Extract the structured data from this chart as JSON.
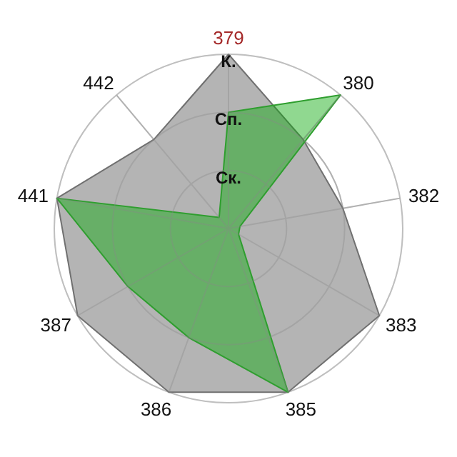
{
  "chart_data": {
    "type": "radar",
    "categories": [
      "379",
      "380",
      "382",
      "383",
      "385",
      "386",
      "387",
      "441",
      "442"
    ],
    "series": [
      {
        "color": "#b4b4b4",
        "values": [
          3,
          2,
          2,
          3,
          3,
          3,
          3,
          3,
          2
        ]
      },
      {
        "color": "#08a908",
        "values": [
          2,
          3,
          0.2,
          0.2,
          3,
          2,
          2,
          3,
          0.25
        ]
      }
    ],
    "ylim": [
      0,
      3
    ],
    "yticks": [
      {
        "value": 1,
        "label": "Ск."
      },
      {
        "value": 2,
        "label": "Сп."
      },
      {
        "value": 3,
        "label": "К."
      }
    ],
    "grid": true
  }
}
